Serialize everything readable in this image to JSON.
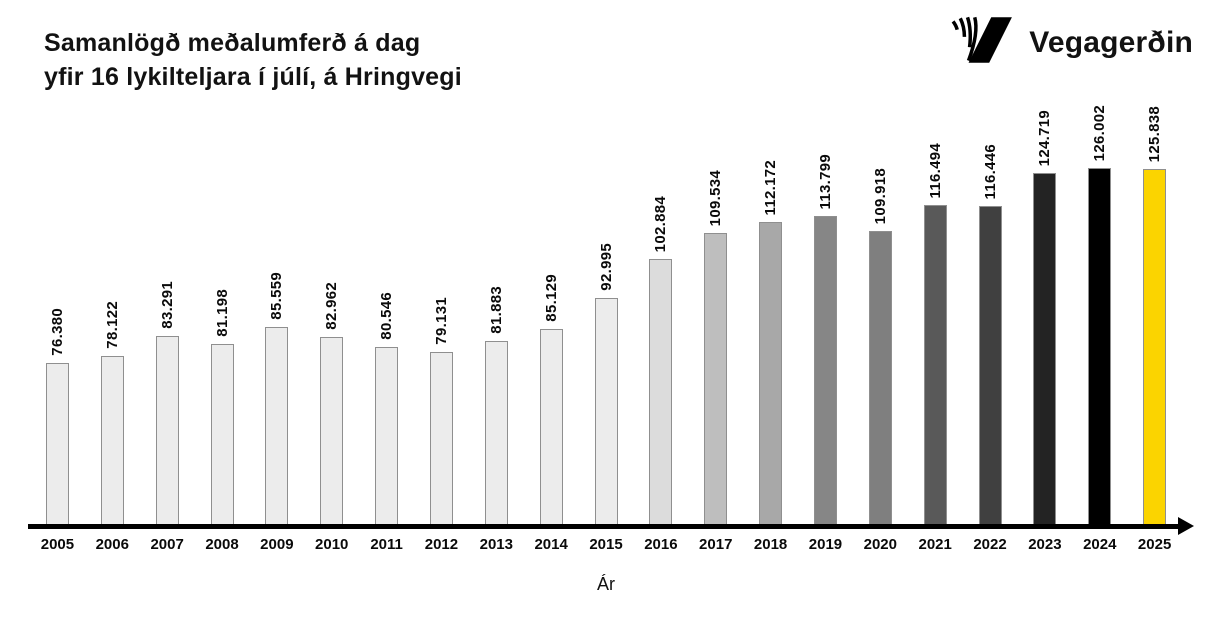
{
  "header": {
    "title_line1": "Samanlögð meðalumferð á dag",
    "title_line2": "yfir 16 lykilteljara í júlí, á Hringvegi",
    "logo": {
      "text": "Vegagerðin"
    }
  },
  "chart_data": {
    "type": "bar",
    "title": "Samanlögð meðalumferð á dag yfir 16 lykilteljara í júlí, á Hringvegi",
    "xlabel": "Ár",
    "categories": [
      "2005",
      "2006",
      "2007",
      "2008",
      "2009",
      "2010",
      "2011",
      "2012",
      "2013",
      "2014",
      "2015",
      "2016",
      "2017",
      "2018",
      "2019",
      "2020",
      "2021",
      "2022",
      "2023",
      "2024",
      "2025"
    ],
    "values": [
      76380,
      78122,
      83291,
      81198,
      85559,
      82962,
      80546,
      79131,
      81883,
      85129,
      92995,
      102884,
      109534,
      112172,
      113799,
      109918,
      116494,
      116446,
      124719,
      126002,
      125838
    ],
    "value_labels": [
      "76.380",
      "78.122",
      "83.291",
      "81.198",
      "85.559",
      "82.962",
      "80.546",
      "79.131",
      "81.883",
      "85.129",
      "92.995",
      "102.884",
      "109.534",
      "112.172",
      "113.799",
      "109.918",
      "116.494",
      "116.446",
      "124.719",
      "126.002",
      "125.838"
    ],
    "bar_colors": [
      "#ececec",
      "#ececec",
      "#ececec",
      "#ececec",
      "#ececec",
      "#ececec",
      "#ececec",
      "#ececec",
      "#ececec",
      "#ececec",
      "#ececec",
      "#dcdcdc",
      "#bebebe",
      "#a8a8a8",
      "#868686",
      "#7f7f7f",
      "#595959",
      "#404040",
      "#232323",
      "#000000",
      "#fbd400"
    ],
    "bar_border_color": "#8f8f8f",
    "highlight_year": "2025",
    "highlight_color": "#fbd400",
    "axis_color": "#000000",
    "value_axis_visible": false,
    "grid": false,
    "legend": "none"
  }
}
